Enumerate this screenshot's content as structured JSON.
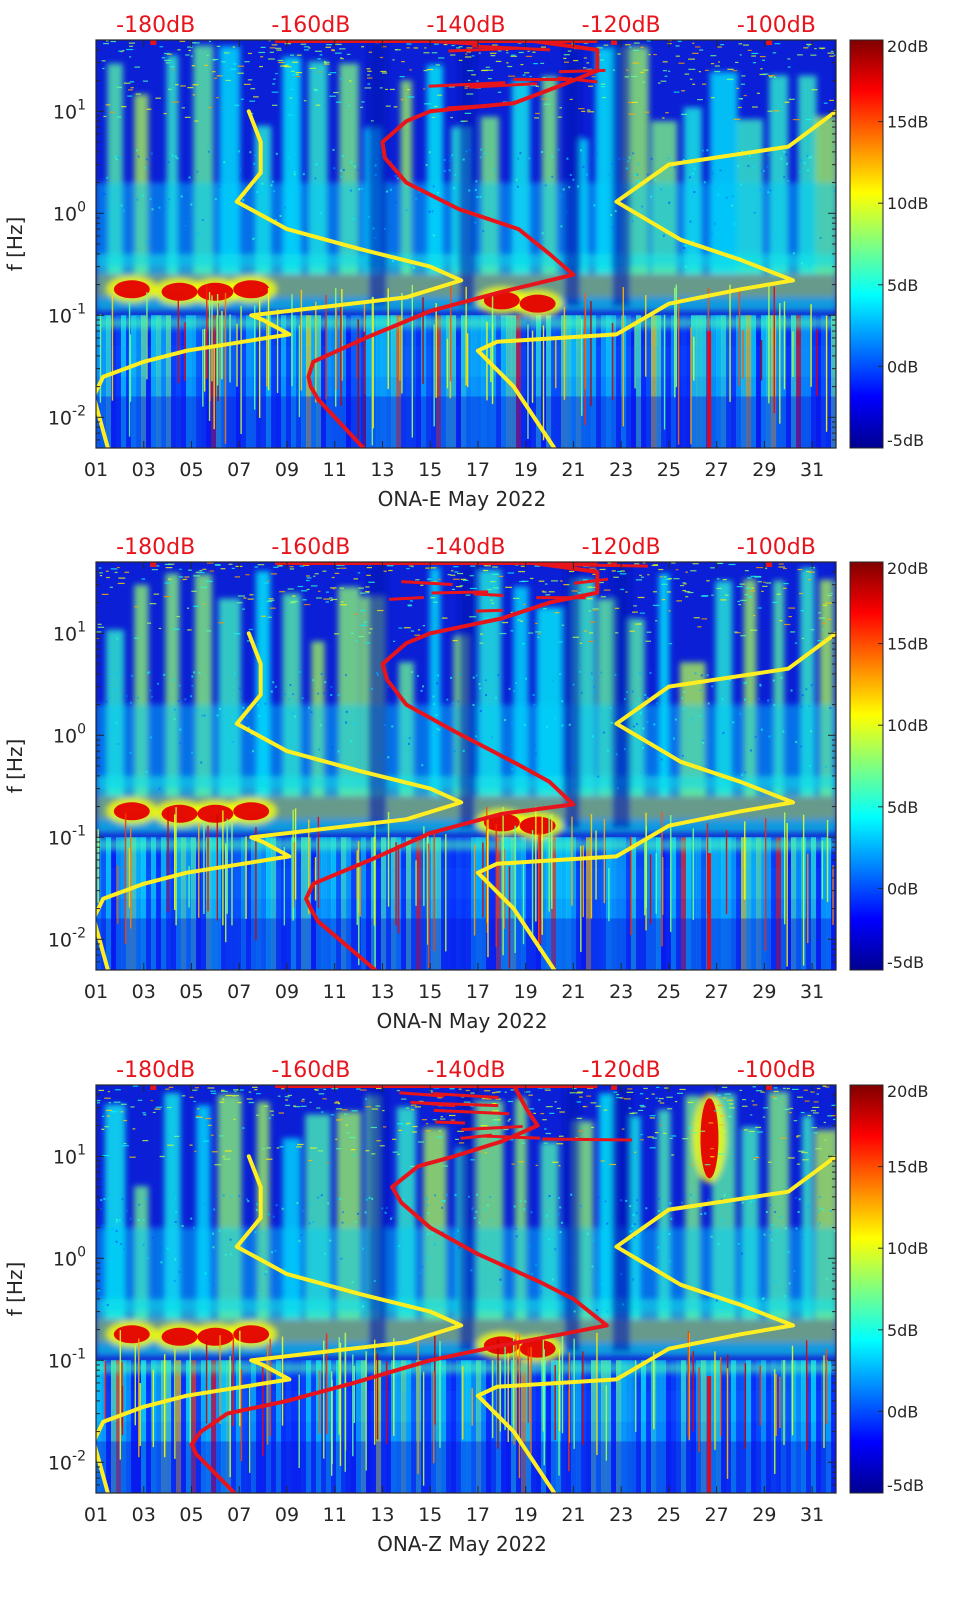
{
  "chart_data": [
    {
      "type": "heatmap",
      "title": "",
      "xlabel": "ONA-E May 2022",
      "ylabel": "f [Hz]",
      "x_tick_labels": [
        "01",
        "03",
        "05",
        "07",
        "09",
        "11",
        "13",
        "15",
        "17",
        "19",
        "21",
        "23",
        "25",
        "27",
        "29",
        "31"
      ],
      "x_ticks": [
        1,
        3,
        5,
        7,
        9,
        11,
        13,
        15,
        17,
        19,
        21,
        23,
        25,
        27,
        29,
        31
      ],
      "xlim": [
        1,
        32
      ],
      "ylim": [
        0.005,
        50
      ],
      "y_scale": "log",
      "y_ticks": [
        {
          "value": 0.01,
          "base": "10",
          "exp": "-2"
        },
        {
          "value": 0.1,
          "base": "10",
          "exp": "-1"
        },
        {
          "value": 1,
          "base": "10",
          "exp": "0"
        },
        {
          "value": 10,
          "base": "10",
          "exp": "1"
        }
      ],
      "top_axis_labels": [
        "-180dB",
        "-160dB",
        "-140dB",
        "-120dB",
        "-100dB"
      ],
      "top_axis_positions": [
        3.5,
        10.0,
        16.5,
        23.0,
        29.5
      ],
      "colorbar": {
        "min": -5,
        "max": 20,
        "ticks": [
          -5,
          0,
          5,
          10,
          15,
          20
        ],
        "labels": [
          "-5dB",
          "0dB",
          "5dB",
          "10dB",
          "15dB",
          "20dB"
        ]
      },
      "bright_bands_hz": [
        0.06,
        0.08,
        0.15,
        0.2,
        0.3
      ],
      "hot_spots": [
        {
          "day": 2.5,
          "f": 0.18
        },
        {
          "day": 4.5,
          "f": 0.17
        },
        {
          "day": 6.0,
          "f": 0.17
        },
        {
          "day": 7.5,
          "f": 0.18
        },
        {
          "day": 18.0,
          "f": 0.14
        },
        {
          "day": 19.5,
          "f": 0.13
        }
      ],
      "series": [
        {
          "color": "#ffee22",
          "note": "yellow noise model curves",
          "segments": [
            [
              [
                1.5,
                0.005
              ],
              [
                0.9,
                0.016
              ],
              [
                1.3,
                0.025
              ],
              [
                3,
                0.035
              ],
              [
                4.8,
                0.045
              ],
              [
                9.1,
                0.065
              ],
              [
                8,
                0.09
              ],
              [
                7.5,
                0.1
              ],
              [
                14,
                0.15
              ],
              [
                16.3,
                0.22
              ],
              [
                15,
                0.3
              ],
              [
                12,
                0.45
              ],
              [
                9,
                0.7
              ],
              [
                6.9,
                1.3
              ],
              [
                7.9,
                2.5
              ],
              [
                7.9,
                5
              ],
              [
                7.4,
                10
              ]
            ],
            [
              [
                20.2,
                0.005
              ],
              [
                18.5,
                0.02
              ],
              [
                17,
                0.045
              ],
              [
                17.8,
                0.055
              ],
              [
                22.8,
                0.065
              ],
              [
                25,
                0.13
              ],
              [
                28,
                0.18
              ],
              [
                30.2,
                0.22
              ],
              [
                28,
                0.35
              ],
              [
                25.5,
                0.55
              ],
              [
                22.8,
                1.3
              ],
              [
                25,
                3
              ],
              [
                30,
                4.5
              ],
              [
                32,
                10
              ]
            ]
          ]
        },
        {
          "color": "#e8141c",
          "note": "red reference curve",
          "segments": [
            [
              [
                12.2,
                0.005
              ],
              [
                10.3,
                0.015
              ],
              [
                10,
                0.02
              ],
              [
                9.9,
                0.025
              ],
              [
                10.1,
                0.035
              ],
              [
                12.3,
                0.06
              ],
              [
                15,
                0.11
              ],
              [
                18,
                0.17
              ],
              [
                21,
                0.25
              ],
              [
                20,
                0.4
              ],
              [
                18.7,
                0.7
              ],
              [
                16.2,
                1.1
              ],
              [
                14,
                2
              ],
              [
                13.1,
                3.5
              ],
              [
                13,
                5
              ],
              [
                14,
                8
              ],
              [
                15,
                10
              ],
              [
                18.5,
                12
              ],
              [
                20.5,
                18
              ],
              [
                22,
                25
              ],
              [
                22,
                40
              ],
              [
                19,
                50
              ]
            ]
          ]
        }
      ]
    },
    {
      "type": "heatmap",
      "title": "",
      "xlabel": "ONA-N May 2022",
      "ylabel": "f [Hz]",
      "x_tick_labels": [
        "01",
        "03",
        "05",
        "07",
        "09",
        "11",
        "13",
        "15",
        "17",
        "19",
        "21",
        "23",
        "25",
        "27",
        "29",
        "31"
      ],
      "x_ticks": [
        1,
        3,
        5,
        7,
        9,
        11,
        13,
        15,
        17,
        19,
        21,
        23,
        25,
        27,
        29,
        31
      ],
      "xlim": [
        1,
        32
      ],
      "ylim": [
        0.005,
        50
      ],
      "y_scale": "log",
      "y_ticks": [
        {
          "value": 0.01,
          "base": "10",
          "exp": "-2"
        },
        {
          "value": 0.1,
          "base": "10",
          "exp": "-1"
        },
        {
          "value": 1,
          "base": "10",
          "exp": "0"
        },
        {
          "value": 10,
          "base": "10",
          "exp": "1"
        }
      ],
      "top_axis_labels": [
        "-180dB",
        "-160dB",
        "-140dB",
        "-120dB",
        "-100dB"
      ],
      "top_axis_positions": [
        3.5,
        10.0,
        16.5,
        23.0,
        29.5
      ],
      "colorbar": {
        "min": -5,
        "max": 20,
        "ticks": [
          -5,
          0,
          5,
          10,
          15,
          20
        ],
        "labels": [
          "-5dB",
          "0dB",
          "5dB",
          "10dB",
          "15dB",
          "20dB"
        ]
      },
      "bright_bands_hz": [
        0.06,
        0.08,
        0.15,
        0.2,
        0.3
      ],
      "hot_spots": [
        {
          "day": 2.5,
          "f": 0.18
        },
        {
          "day": 4.5,
          "f": 0.17
        },
        {
          "day": 6.0,
          "f": 0.17
        },
        {
          "day": 7.5,
          "f": 0.18
        },
        {
          "day": 18.0,
          "f": 0.14
        },
        {
          "day": 19.5,
          "f": 0.13
        }
      ],
      "series": [
        {
          "color": "#ffee22",
          "note": "yellow noise model curves",
          "segments": [
            [
              [
                1.5,
                0.005
              ],
              [
                0.9,
                0.016
              ],
              [
                1.3,
                0.025
              ],
              [
                3,
                0.035
              ],
              [
                4.8,
                0.045
              ],
              [
                9.1,
                0.065
              ],
              [
                8,
                0.09
              ],
              [
                7.5,
                0.1
              ],
              [
                14,
                0.15
              ],
              [
                16.3,
                0.22
              ],
              [
                15,
                0.3
              ],
              [
                12,
                0.45
              ],
              [
                9,
                0.7
              ],
              [
                6.9,
                1.3
              ],
              [
                7.9,
                2.5
              ],
              [
                7.9,
                5
              ],
              [
                7.4,
                10
              ]
            ],
            [
              [
                20.2,
                0.005
              ],
              [
                18.5,
                0.02
              ],
              [
                17,
                0.045
              ],
              [
                17.8,
                0.055
              ],
              [
                22.8,
                0.065
              ],
              [
                25,
                0.13
              ],
              [
                28,
                0.18
              ],
              [
                30.2,
                0.22
              ],
              [
                28,
                0.35
              ],
              [
                25.5,
                0.55
              ],
              [
                22.8,
                1.3
              ],
              [
                25,
                3
              ],
              [
                30,
                4.5
              ],
              [
                32,
                10
              ]
            ]
          ]
        },
        {
          "color": "#e8141c",
          "note": "red reference curve",
          "segments": [
            [
              [
                12.7,
                0.005
              ],
              [
                10.3,
                0.015
              ],
              [
                10,
                0.02
              ],
              [
                9.8,
                0.025
              ],
              [
                10.1,
                0.035
              ],
              [
                12.5,
                0.06
              ],
              [
                15,
                0.11
              ],
              [
                18,
                0.17
              ],
              [
                21,
                0.21
              ],
              [
                20,
                0.35
              ],
              [
                18.8,
                0.5
              ],
              [
                16,
                1.1
              ],
              [
                14,
                2
              ],
              [
                13.2,
                3.5
              ],
              [
                13,
                5
              ],
              [
                14,
                8
              ],
              [
                15,
                10
              ],
              [
                18,
                14
              ],
              [
                20,
                20
              ],
              [
                22,
                25
              ],
              [
                22,
                40
              ],
              [
                19,
                50
              ]
            ]
          ]
        }
      ]
    },
    {
      "type": "heatmap",
      "title": "",
      "xlabel": "ONA-Z May 2022",
      "ylabel": "f [Hz]",
      "x_tick_labels": [
        "01",
        "03",
        "05",
        "07",
        "09",
        "11",
        "13",
        "15",
        "17",
        "19",
        "21",
        "23",
        "25",
        "27",
        "29",
        "31"
      ],
      "x_ticks": [
        1,
        3,
        5,
        7,
        9,
        11,
        13,
        15,
        17,
        19,
        21,
        23,
        25,
        27,
        29,
        31
      ],
      "xlim": [
        1,
        32
      ],
      "ylim": [
        0.005,
        50
      ],
      "y_scale": "log",
      "y_ticks": [
        {
          "value": 0.01,
          "base": "10",
          "exp": "-2"
        },
        {
          "value": 0.1,
          "base": "10",
          "exp": "-1"
        },
        {
          "value": 1,
          "base": "10",
          "exp": "0"
        },
        {
          "value": 10,
          "base": "10",
          "exp": "1"
        }
      ],
      "top_axis_labels": [
        "-180dB",
        "-160dB",
        "-140dB",
        "-120dB",
        "-100dB"
      ],
      "top_axis_positions": [
        3.5,
        10.0,
        16.5,
        23.0,
        29.5
      ],
      "colorbar": {
        "min": -5,
        "max": 20,
        "ticks": [
          -5,
          0,
          5,
          10,
          15,
          20
        ],
        "labels": [
          "-5dB",
          "0dB",
          "5dB",
          "10dB",
          "15dB",
          "20dB"
        ]
      },
      "bright_bands_hz": [
        0.06,
        0.08,
        0.15,
        0.2,
        0.3
      ],
      "hot_spots": [
        {
          "day": 2.5,
          "f": 0.18
        },
        {
          "day": 4.5,
          "f": 0.17
        },
        {
          "day": 6.0,
          "f": 0.17
        },
        {
          "day": 7.5,
          "f": 0.18
        },
        {
          "day": 18.0,
          "f": 0.14
        },
        {
          "day": 19.5,
          "f": 0.13
        },
        {
          "day": 26.7,
          "f": 15
        }
      ],
      "series": [
        {
          "color": "#ffee22",
          "note": "yellow noise model curves",
          "segments": [
            [
              [
                1.5,
                0.005
              ],
              [
                0.9,
                0.016
              ],
              [
                1.3,
                0.025
              ],
              [
                3,
                0.035
              ],
              [
                4.8,
                0.045
              ],
              [
                9.1,
                0.065
              ],
              [
                8,
                0.09
              ],
              [
                7.5,
                0.1
              ],
              [
                14,
                0.15
              ],
              [
                16.3,
                0.22
              ],
              [
                15,
                0.3
              ],
              [
                12,
                0.45
              ],
              [
                9,
                0.7
              ],
              [
                6.9,
                1.3
              ],
              [
                7.9,
                2.5
              ],
              [
                7.9,
                5
              ],
              [
                7.4,
                10
              ]
            ],
            [
              [
                20.2,
                0.005
              ],
              [
                18.5,
                0.02
              ],
              [
                17,
                0.045
              ],
              [
                17.8,
                0.055
              ],
              [
                22.8,
                0.065
              ],
              [
                25,
                0.13
              ],
              [
                28,
                0.18
              ],
              [
                30.2,
                0.22
              ],
              [
                28,
                0.35
              ],
              [
                25.5,
                0.55
              ],
              [
                22.8,
                1.3
              ],
              [
                25,
                3
              ],
              [
                30,
                4.5
              ],
              [
                32,
                10
              ]
            ]
          ]
        },
        {
          "color": "#e8141c",
          "note": "red reference curve",
          "segments": [
            [
              [
                6.8,
                0.005
              ],
              [
                5.2,
                0.012
              ],
              [
                5,
                0.015
              ],
              [
                5.4,
                0.02
              ],
              [
                6.5,
                0.03
              ],
              [
                9,
                0.04
              ],
              [
                11.8,
                0.06
              ],
              [
                15,
                0.1
              ],
              [
                18,
                0.14
              ],
              [
                20.5,
                0.18
              ],
              [
                22.4,
                0.22
              ],
              [
                21,
                0.4
              ],
              [
                19.5,
                0.6
              ],
              [
                17,
                1.1
              ],
              [
                15,
                2
              ],
              [
                13.8,
                3.5
              ],
              [
                13.4,
                5
              ],
              [
                14.5,
                8
              ],
              [
                16,
                10
              ],
              [
                18,
                14
              ],
              [
                19.5,
                20
              ],
              [
                19,
                30
              ],
              [
                18.5,
                50
              ]
            ]
          ]
        }
      ]
    }
  ]
}
